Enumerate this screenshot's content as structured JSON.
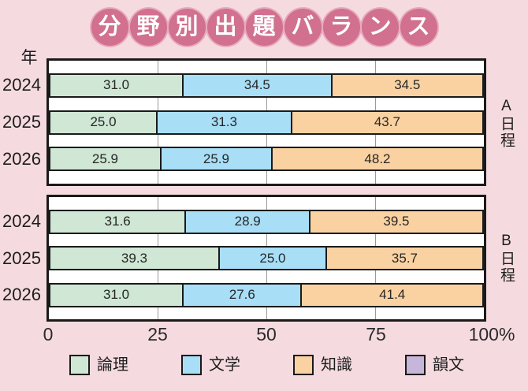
{
  "title": {
    "text": "分野別出題バランス",
    "chars": [
      "分",
      "野",
      "別",
      "出",
      "題",
      "バ",
      "ラ",
      "ン",
      "ス"
    ]
  },
  "axis": {
    "year_label": "年",
    "ticks": [
      "0",
      "25",
      "50",
      "75",
      "100%"
    ]
  },
  "charts": [
    {
      "group_label": "A日程",
      "rows": [
        {
          "year": "2024",
          "segments": [
            {
              "field": "論理",
              "value": 31.0,
              "label": "31.0"
            },
            {
              "field": "文学",
              "value": 34.5,
              "label": "34.5"
            },
            {
              "field": "知識",
              "value": 34.5,
              "label": "34.5"
            }
          ]
        },
        {
          "year": "2025",
          "segments": [
            {
              "field": "論理",
              "value": 25.0,
              "label": "25.0"
            },
            {
              "field": "文学",
              "value": 31.3,
              "label": "31.3"
            },
            {
              "field": "知識",
              "value": 43.7,
              "label": "43.7"
            }
          ]
        },
        {
          "year": "2026",
          "segments": [
            {
              "field": "論理",
              "value": 25.9,
              "label": "25.9"
            },
            {
              "field": "文学",
              "value": 25.9,
              "label": "25.9"
            },
            {
              "field": "知識",
              "value": 48.2,
              "label": "48.2"
            }
          ]
        }
      ]
    },
    {
      "group_label": "B日程",
      "rows": [
        {
          "year": "2024",
          "segments": [
            {
              "field": "論理",
              "value": 31.6,
              "label": "31.6"
            },
            {
              "field": "文学",
              "value": 28.9,
              "label": "28.9"
            },
            {
              "field": "知識",
              "value": 39.5,
              "label": "39.5"
            }
          ]
        },
        {
          "year": "2025",
          "segments": [
            {
              "field": "論理",
              "value": 39.3,
              "label": "39.3"
            },
            {
              "field": "文学",
              "value": 25.0,
              "label": "25.0"
            },
            {
              "field": "知識",
              "value": 35.7,
              "label": "35.7"
            }
          ]
        },
        {
          "year": "2026",
          "segments": [
            {
              "field": "論理",
              "value": 31.0,
              "label": "31.0"
            },
            {
              "field": "文学",
              "value": 27.6,
              "label": "27.6"
            },
            {
              "field": "知識",
              "value": 41.4,
              "label": "41.4"
            }
          ]
        }
      ]
    }
  ],
  "legend": [
    {
      "label": "論理",
      "color": "#cfe7d4"
    },
    {
      "label": "文学",
      "color": "#a9def7"
    },
    {
      "label": "知識",
      "color": "#fad2a2"
    },
    {
      "label": "韻文",
      "color": "#c6b6d9"
    }
  ],
  "colors": {
    "background": "#f5dbe0",
    "title_circle": "#d1708f",
    "title_text": "#ffffff",
    "bar_border": "#1a1a1a",
    "gridline": "#9a9a9a",
    "ronri_green": "#cfe7d4",
    "bungaku_blue": "#a9def7",
    "chishiki_orange": "#fad2a2",
    "inbun_purple": "#c6b6d9"
  },
  "chart_data": [
    {
      "type": "bar",
      "orientation": "horizontal",
      "stacked": true,
      "title": "分野別出題バランス",
      "group": "A日程",
      "categories": [
        "2024",
        "2025",
        "2026"
      ],
      "series": [
        {
          "name": "論理",
          "values": [
            31.0,
            25.0,
            25.9
          ]
        },
        {
          "name": "文学",
          "values": [
            34.5,
            31.3,
            25.9
          ]
        },
        {
          "name": "知識",
          "values": [
            34.5,
            43.7,
            48.2
          ]
        },
        {
          "name": "韻文",
          "values": [
            0,
            0,
            0
          ]
        }
      ],
      "xlim": [
        0,
        100
      ],
      "xticks": [
        0,
        25,
        50,
        75,
        100
      ],
      "unit": "%",
      "xlabel": "",
      "ylabel": "年",
      "legend_position": "bottom",
      "grid": true
    },
    {
      "type": "bar",
      "orientation": "horizontal",
      "stacked": true,
      "title": "分野別出題バランス",
      "group": "B日程",
      "categories": [
        "2024",
        "2025",
        "2026"
      ],
      "series": [
        {
          "name": "論理",
          "values": [
            31.6,
            39.3,
            31.0
          ]
        },
        {
          "name": "文学",
          "values": [
            28.9,
            25.0,
            27.6
          ]
        },
        {
          "name": "知識",
          "values": [
            39.5,
            35.7,
            41.4
          ]
        },
        {
          "name": "韻文",
          "values": [
            0,
            0,
            0
          ]
        }
      ],
      "xlim": [
        0,
        100
      ],
      "xticks": [
        0,
        25,
        50,
        75,
        100
      ],
      "unit": "%",
      "xlabel": "",
      "ylabel": "年",
      "legend_position": "bottom",
      "grid": true
    }
  ]
}
